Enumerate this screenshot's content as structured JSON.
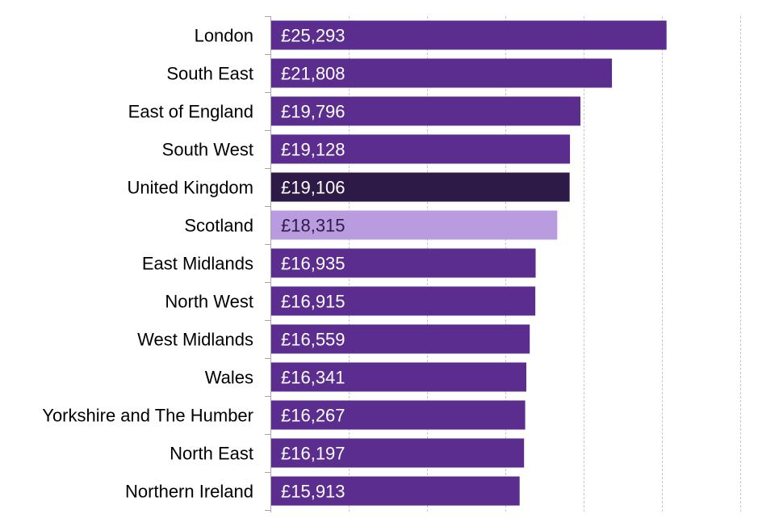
{
  "chart_data": {
    "type": "bar",
    "orientation": "horizontal",
    "categories": [
      "London",
      "South East",
      "East of England",
      "South West",
      "United Kingdom",
      "Scotland",
      "East Midlands",
      "North West",
      "West Midlands",
      "Wales",
      "Yorkshire and The Humber",
      "North East",
      "Northern Ireland"
    ],
    "values": [
      25293,
      21808,
      19796,
      19128,
      19106,
      18315,
      16935,
      16915,
      16559,
      16341,
      16267,
      16197,
      15913
    ],
    "value_labels": [
      "£25,293",
      "£21,808",
      "£19,796",
      "£19,128",
      "£19,106",
      "£18,315",
      "£16,935",
      "£16,915",
      "£16,559",
      "£16,341",
      "£16,267",
      "£16,197",
      "£15,913"
    ],
    "xlim": [
      0,
      30000
    ],
    "grid": true,
    "highlight": {
      "United Kingdom": "dark",
      "Scotland": "light"
    },
    "colors": {
      "default": "#5b2d8e",
      "dark": "#2e1a47",
      "light": "#b99ce0",
      "label_on_dark": "#ffffff",
      "label_on_light": "#2e1a47",
      "grid": "#c8c8c8",
      "axis": "#a6a6a6"
    }
  }
}
